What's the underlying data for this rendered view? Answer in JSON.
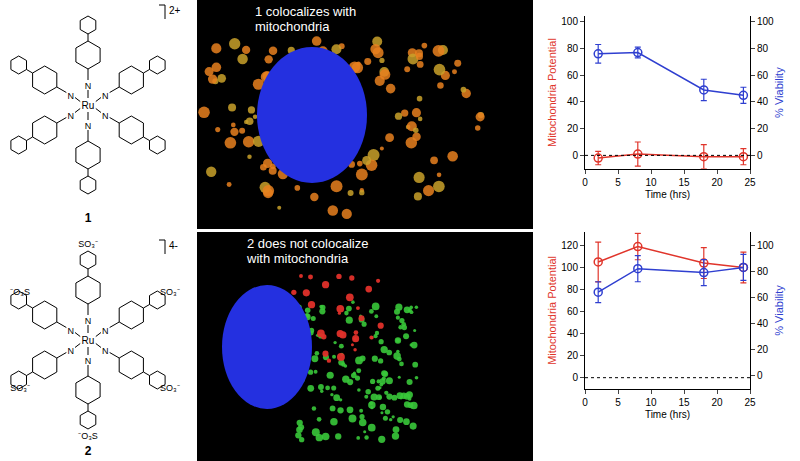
{
  "structures": [
    {
      "label": "1",
      "charge": "2+",
      "metal": "Ru",
      "atom": "N",
      "substituents": []
    },
    {
      "label": "2",
      "charge": "4-",
      "metal": "Ru",
      "atom": "N",
      "substituents": [
        "SO₃⁻",
        "⁻O₃S",
        "SO₃⁻",
        "⁻O₃S",
        "SO₃⁻",
        "SO₃⁻"
      ]
    }
  ],
  "images": [
    {
      "caption": [
        "1 colocalizes with",
        "mitochondria"
      ]
    },
    {
      "caption": [
        "2 does not colocalize",
        "with mitochondria"
      ]
    }
  ],
  "chart_data": [
    {
      "type": "line",
      "x": [
        2,
        8,
        18,
        24
      ],
      "x_label": "Time (hrs)",
      "xlim": [
        0,
        25
      ],
      "xticks": [
        0,
        5,
        10,
        15,
        20,
        25
      ],
      "y_label": "Mitochondria Potential",
      "ylim": [
        -10,
        104
      ],
      "yticks": [
        0,
        20,
        40,
        60,
        80,
        100
      ],
      "y2_label": "% Viability",
      "y2lim": [
        -10,
        104
      ],
      "y2ticks": [
        0,
        20,
        40,
        60,
        80,
        100
      ],
      "hline": 0,
      "series": [
        {
          "name": "Mitochondria Potential",
          "color": "#e0352b",
          "marker": "open circle",
          "values": [
            -2,
            1,
            -1,
            -1
          ],
          "errors": [
            5,
            9,
            9,
            6
          ]
        },
        {
          "name": "% Viability",
          "color": "#2f3fd0",
          "marker": "open circle",
          "axis": "y2",
          "values": [
            76,
            77,
            49,
            45
          ],
          "errors": [
            7,
            4,
            8,
            6
          ]
        }
      ]
    },
    {
      "type": "line",
      "x": [
        2,
        8,
        18,
        24
      ],
      "x_label": "Time (hrs)",
      "xlim": [
        0,
        25
      ],
      "xticks": [
        0,
        5,
        10,
        15,
        20,
        25
      ],
      "y_label": "Mitochondria Potential",
      "ylim": [
        -10,
        132
      ],
      "yticks": [
        0,
        20,
        40,
        60,
        80,
        100,
        120
      ],
      "y2_label": "% Viability",
      "y2lim": [
        -10,
        110
      ],
      "y2ticks": [
        0,
        20,
        40,
        60,
        80,
        100
      ],
      "hline": 0,
      "series": [
        {
          "name": "Mitochondria Potential",
          "color": "#e0352b",
          "marker": "open circle",
          "values": [
            105,
            119,
            104,
            100
          ],
          "errors": [
            18,
            12,
            14,
            14
          ]
        },
        {
          "name": "% Viability",
          "color": "#2f3fd0",
          "marker": "open circle",
          "axis": "y2",
          "values": [
            64,
            82,
            79,
            83
          ],
          "errors": [
            8,
            10,
            10,
            10
          ]
        }
      ]
    }
  ]
}
